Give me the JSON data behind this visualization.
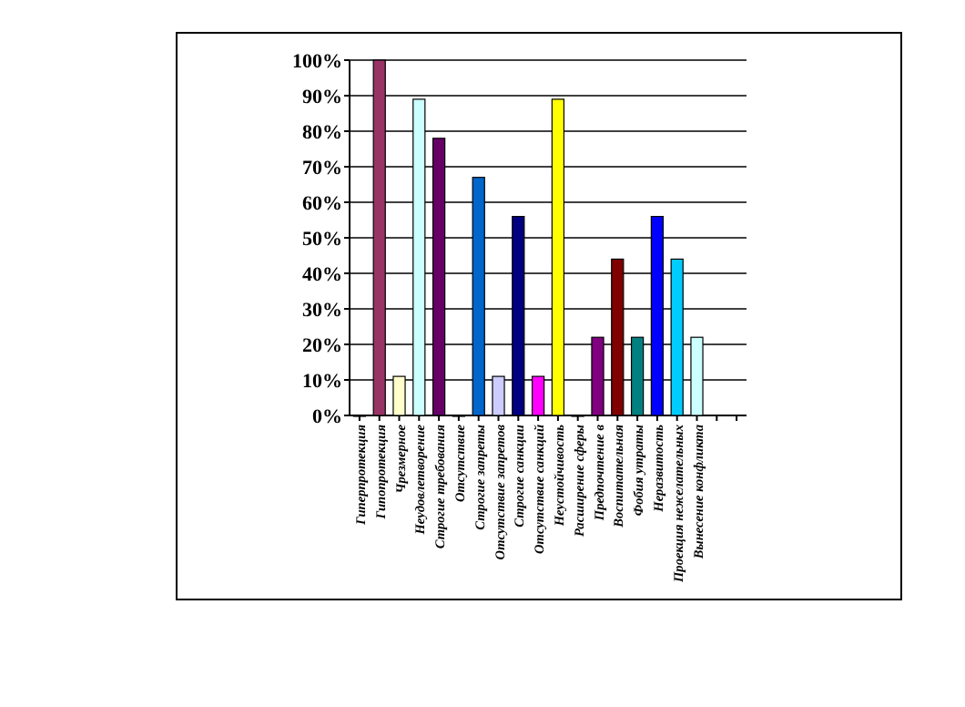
{
  "chart_data": {
    "type": "bar",
    "categories": [
      "Гиперпротекция",
      "Гипопротекция",
      "Чрезмерное",
      "Неудовлетворение",
      "Строгие требования",
      "Отсутствие",
      "Строгие запреты",
      "Отсутствие запретов",
      "Строгие санкции",
      "Отсутствие санкций",
      "Неустойчивость",
      "Расширение сферы",
      "Предпочтение в",
      "Воспитательная",
      "Фобия утраты",
      "Неразвитость",
      "Проекция нежелательных",
      "Вынесение конфликта",
      null,
      null
    ],
    "values": [
      0,
      100,
      11,
      89,
      78,
      0,
      67,
      11,
      56,
      11,
      89,
      0,
      22,
      44,
      22,
      56,
      44,
      22,
      null,
      null
    ],
    "colors": [
      "#9999ff",
      "#993366",
      "#ffffcc",
      "#ccffff",
      "#660066",
      "#ff8080",
      "#0066cc",
      "#ccccff",
      "#000080",
      "#ff00ff",
      "#ffff00",
      "#00ffff",
      "#800080",
      "#800000",
      "#008080",
      "#0000ff",
      "#00ccff",
      "#ccffff",
      null,
      null
    ],
    "ylim": [
      0,
      100
    ],
    "yticks": [
      {
        "value": 0,
        "label": "0%"
      },
      {
        "value": 10,
        "label": "10%"
      },
      {
        "value": 20,
        "label": "20%"
      },
      {
        "value": 30,
        "label": "30%"
      },
      {
        "value": 40,
        "label": "40%"
      },
      {
        "value": 50,
        "label": "50%"
      },
      {
        "value": 60,
        "label": "60%"
      },
      {
        "value": 70,
        "label": "70%"
      },
      {
        "value": 80,
        "label": "80%"
      },
      {
        "value": 90,
        "label": "90%"
      },
      {
        "value": 100,
        "label": "100%"
      }
    ],
    "grid": "y"
  }
}
